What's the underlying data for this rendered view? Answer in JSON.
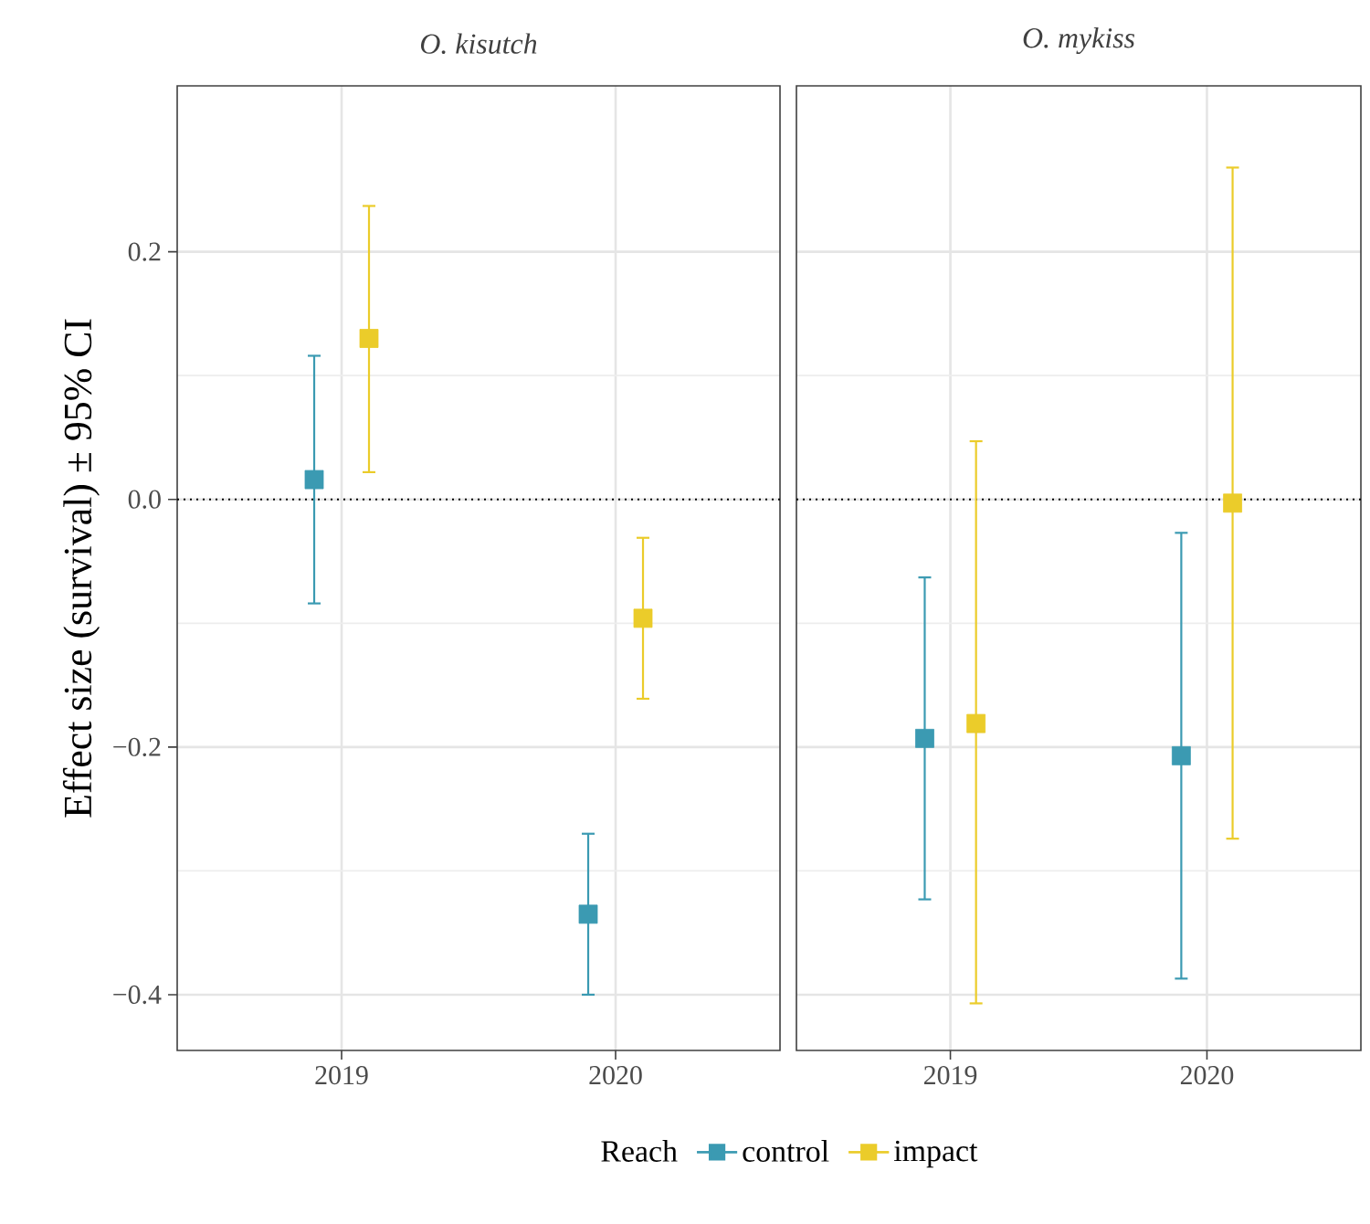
{
  "chart_data": [
    {
      "type": "scatter",
      "title": "O. kisutch",
      "ylabel": "Effect size (survival) ± 95% CI",
      "legend_title": "Reach",
      "legend": "bottom",
      "marker": "square",
      "grid": true,
      "categories": [
        "2019",
        "2020"
      ],
      "ylim": [
        -0.445,
        0.334
      ],
      "yticks": [
        {
          "value": -0.4,
          "label": "−0.4"
        },
        {
          "value": -0.2,
          "label": "−0.2"
        },
        {
          "value": 0,
          "label": "0.0"
        },
        0.2
      ],
      "ref_lines": [
        {
          "axis": "y",
          "value": 0,
          "line_style": "dotted",
          "color": "#000000"
        }
      ],
      "series": [
        {
          "name": "control",
          "color": "#3b9ab2",
          "values": [
            0.016,
            -0.335
          ],
          "errors": [
            [
              -0.084,
              0.116
            ],
            [
              -0.4,
              -0.27
            ]
          ]
        },
        {
          "name": "impact",
          "color": "#ebcc2a",
          "values": [
            0.13,
            -0.096
          ],
          "errors": [
            [
              0.022,
              0.237
            ],
            [
              -0.161,
              -0.031
            ]
          ]
        }
      ]
    },
    {
      "type": "scatter",
      "title": "O. mykiss",
      "marker": "square",
      "grid": true,
      "tick_labels": "x",
      "categories": [
        "2019",
        "2020"
      ],
      "ylim": [
        -0.445,
        0.334
      ],
      "yticks": [
        {
          "value": -0.4,
          "label": null
        },
        {
          "value": -0.2,
          "label": null
        },
        {
          "value": 0,
          "label": null
        },
        {
          "value": 0.2,
          "label": null
        }
      ],
      "ref_lines": [
        {
          "axis": "y",
          "value": 0,
          "line_style": "dotted",
          "color": "#000000"
        }
      ],
      "series": [
        {
          "color": "#3b9ab2",
          "values": [
            -0.193,
            -0.207
          ],
          "errors": [
            [
              -0.323,
              -0.063
            ],
            [
              -0.387,
              -0.027
            ]
          ]
        },
        {
          "color": "#ebcc2a",
          "values": [
            -0.181,
            -0.003
          ],
          "errors": [
            [
              -0.407,
              0.047
            ],
            [
              -0.274,
              0.268
            ]
          ]
        }
      ]
    }
  ]
}
